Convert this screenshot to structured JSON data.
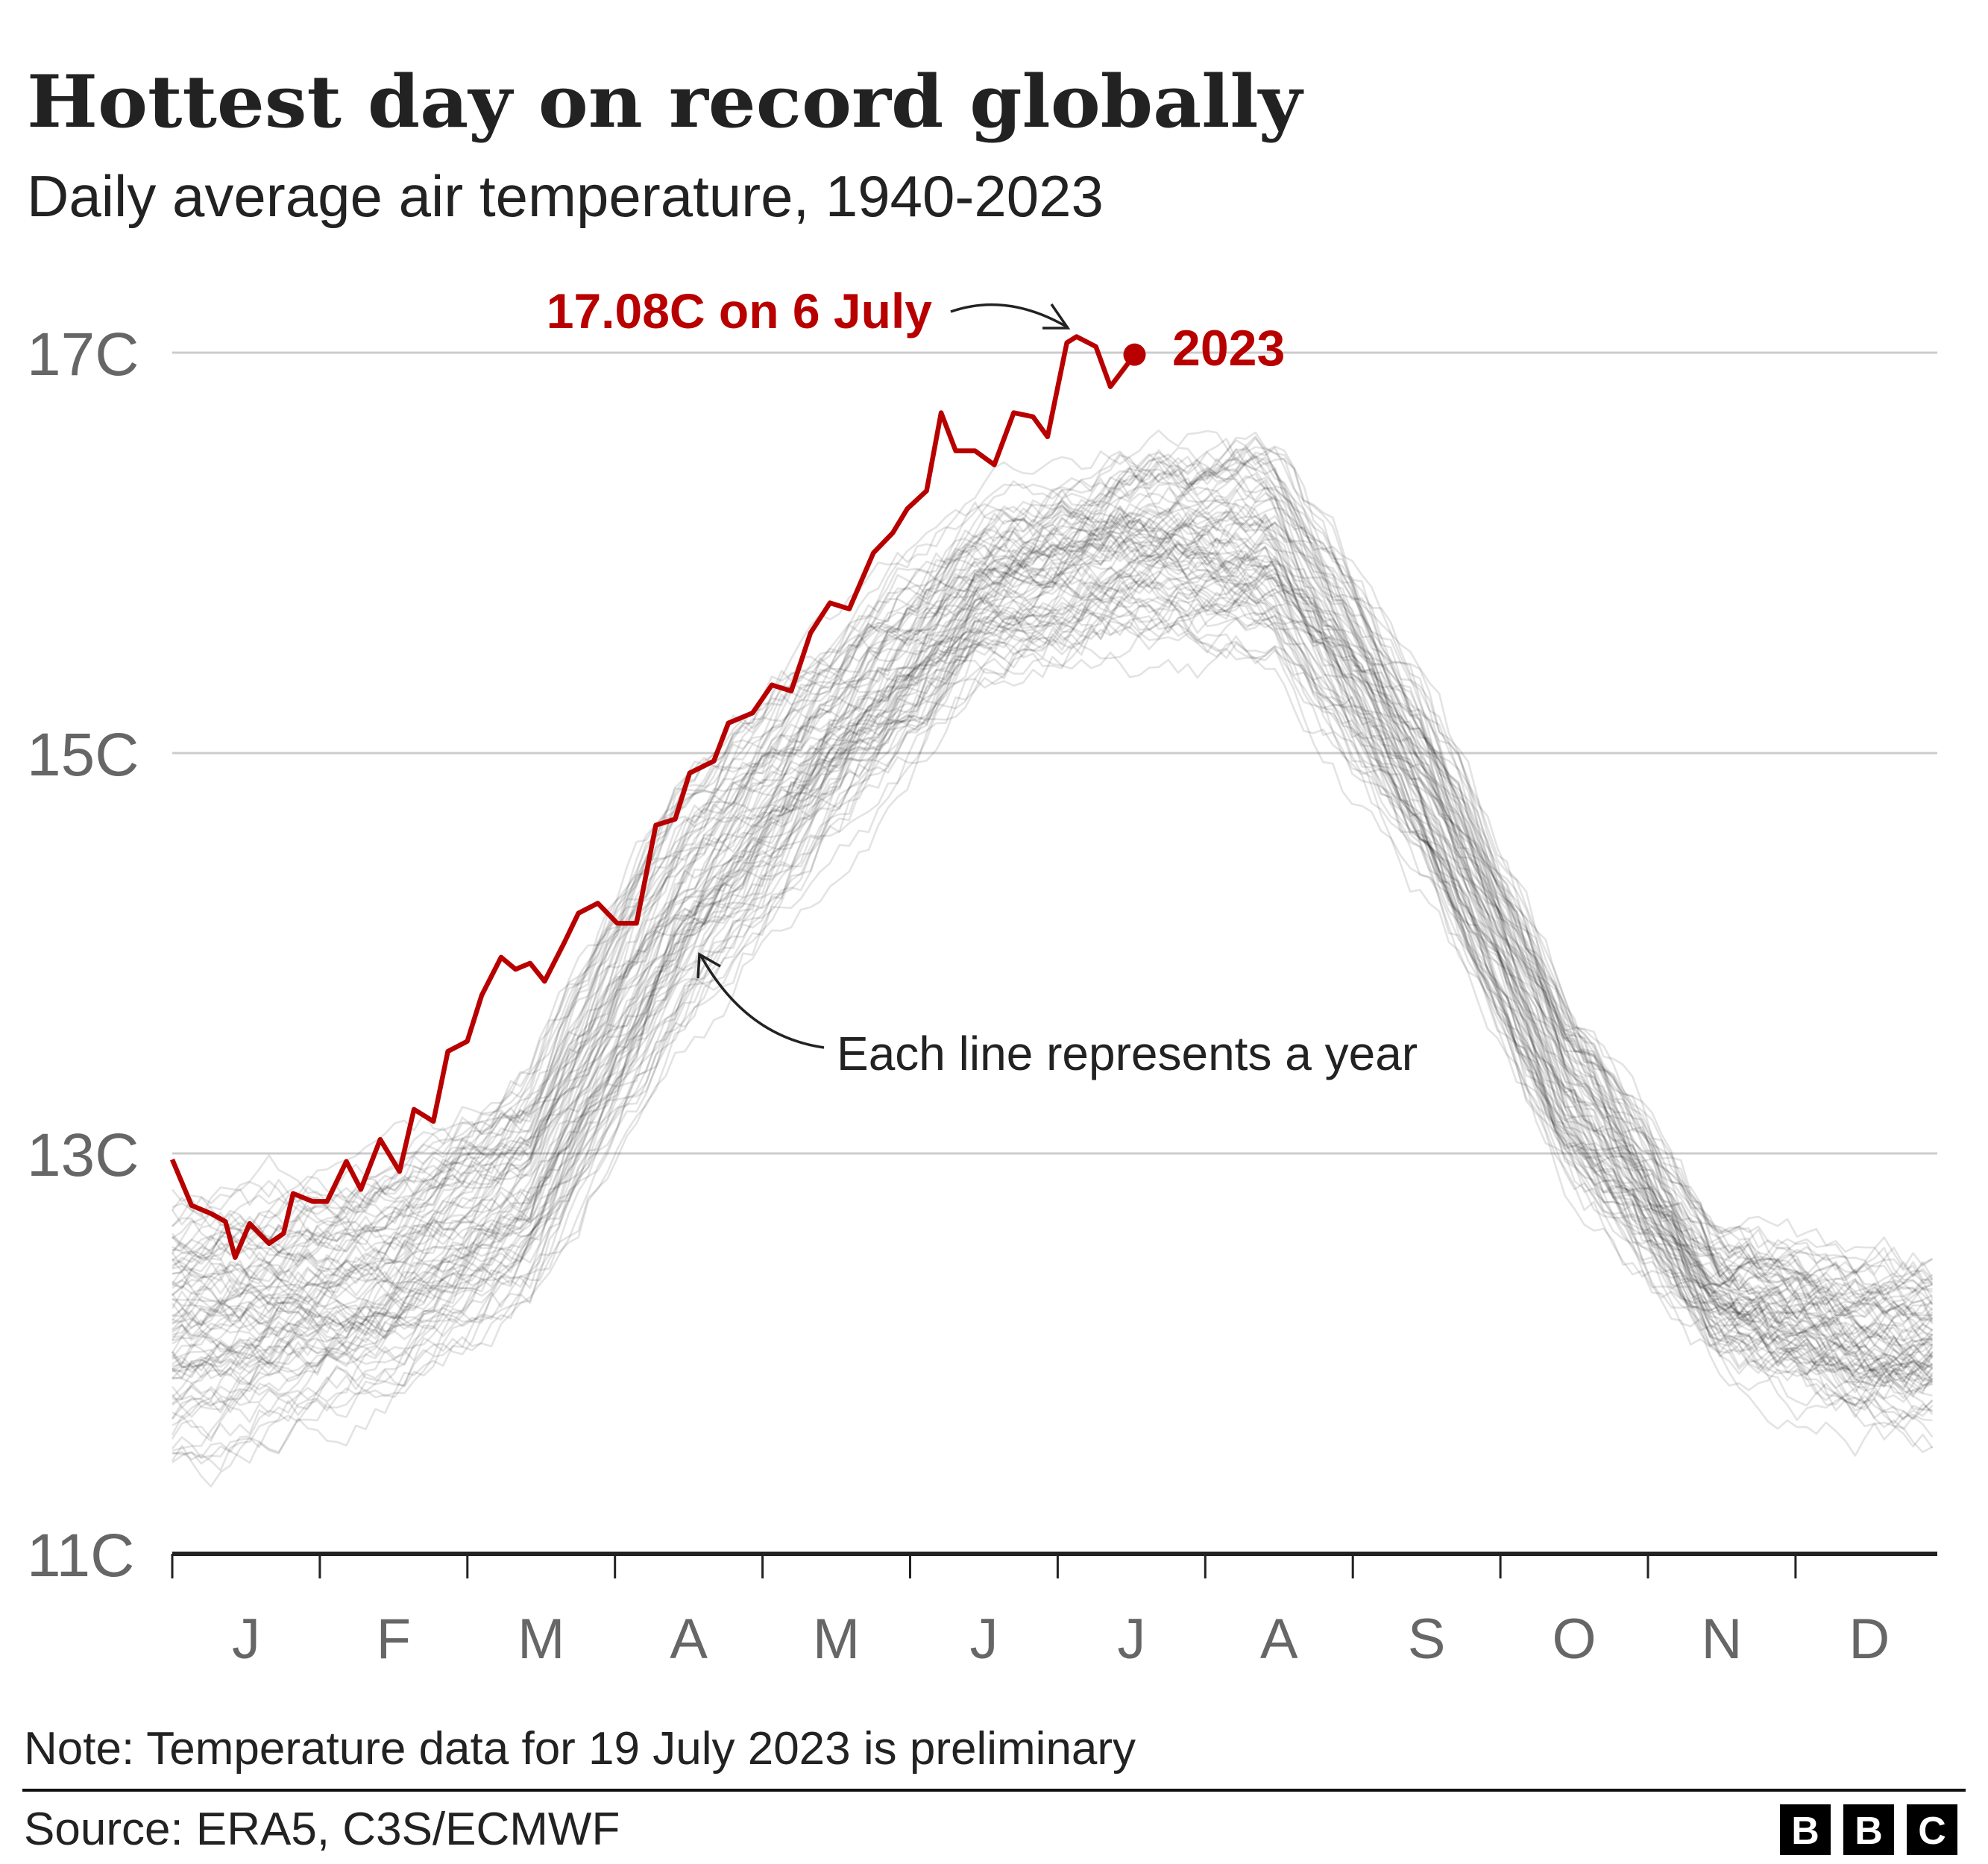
{
  "header": {
    "title": "Hottest day on record globally",
    "subtitle": "Daily average air temperature, 1940-2023"
  },
  "footer": {
    "note": "Note: Temperature data for 19 July 2023 is preliminary",
    "source": "Source: ERA5, C3S/ECMWF",
    "logo": [
      "B",
      "B",
      "C"
    ]
  },
  "chart_data": {
    "type": "line",
    "title": "Hottest day on record globally",
    "subtitle": "Daily average air temperature, 1940-2023",
    "xlabel": "",
    "ylabel": "",
    "ylim": [
      11,
      17
    ],
    "y_ticks": [
      {
        "value": 11,
        "label": "11C"
      },
      {
        "value": 13,
        "label": "13C"
      },
      {
        "value": 15,
        "label": "15C"
      },
      {
        "value": 17,
        "label": "17C"
      }
    ],
    "x_ticks": [
      "J",
      "F",
      "M",
      "A",
      "M",
      "J",
      "J",
      "A",
      "S",
      "O",
      "N",
      "D"
    ],
    "grid": true,
    "colors": {
      "highlight": "#b80000",
      "other_years": "#000000",
      "grid": "#cccccc",
      "axis": "#222222",
      "tick_label": "#666666"
    },
    "highlight_series": {
      "name": "2023",
      "x_day_of_year": [
        0,
        4,
        8,
        11,
        13,
        16,
        20,
        23,
        25,
        29,
        32,
        36,
        39,
        43,
        47,
        50,
        54,
        57,
        61,
        64,
        68,
        71,
        74,
        77,
        81,
        84,
        88,
        92,
        96,
        100,
        104,
        107,
        112,
        115,
        120,
        124,
        128,
        132,
        136,
        140,
        145,
        149,
        152,
        156,
        159,
        162,
        166,
        170,
        174,
        178,
        181,
        185,
        187,
        191,
        194,
        199
      ],
      "y": [
        12.97,
        12.74,
        12.7,
        12.66,
        12.48,
        12.65,
        12.55,
        12.6,
        12.8,
        12.76,
        12.76,
        12.96,
        12.82,
        13.07,
        12.91,
        13.22,
        13.16,
        13.51,
        13.56,
        13.79,
        13.98,
        13.92,
        13.95,
        13.86,
        14.05,
        14.2,
        14.25,
        14.15,
        14.15,
        14.64,
        14.67,
        14.9,
        14.96,
        15.15,
        15.2,
        15.34,
        15.31,
        15.6,
        15.75,
        15.72,
        16.0,
        16.1,
        16.22,
        16.31,
        16.7,
        16.51,
        16.51,
        16.44,
        16.7,
        16.68,
        16.58,
        17.05,
        17.08,
        17.03,
        16.83,
        16.99
      ]
    },
    "other_years": {
      "years": "1940-2022",
      "envelope_by_month": {
        "months": [
          "J",
          "F",
          "M",
          "A",
          "M",
          "J",
          "J",
          "A",
          "S",
          "O",
          "N",
          "D"
        ],
        "low": [
          11.3,
          11.6,
          12.05,
          13.3,
          14.3,
          15.2,
          15.4,
          15.3,
          14.2,
          12.7,
          11.9,
          11.5
        ],
        "high": [
          13.1,
          13.2,
          13.7,
          15.2,
          15.8,
          16.35,
          16.7,
          16.8,
          15.6,
          14.0,
          12.75,
          12.6
        ]
      }
    },
    "annotations": [
      {
        "text": "17.08C on 6 July",
        "target": "2023 peak"
      },
      {
        "text": "2023",
        "target": "2023 line end"
      },
      {
        "text": "Each line represents a year",
        "target": "grey lines"
      }
    ]
  }
}
